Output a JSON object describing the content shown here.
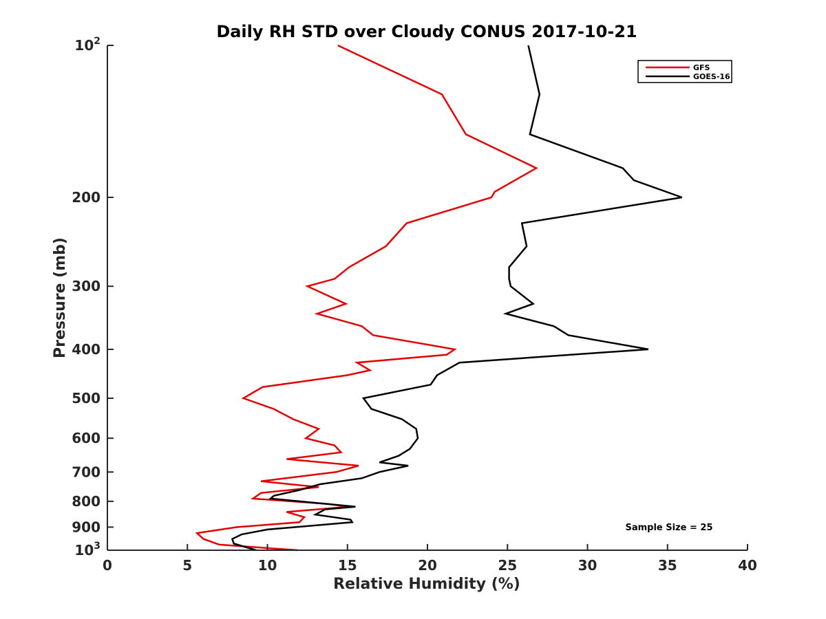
{
  "chart_data": {
    "type": "line",
    "title": "Daily RH STD over Cloudy CONUS 2017-10-21",
    "xlabel": "Relative Humidity (%)",
    "ylabel": "Pressure (mb)",
    "xlim": [
      0,
      40
    ],
    "ylim": [
      100,
      1000
    ],
    "yscale": "log",
    "y_reversed": true,
    "x_ticks": [
      "0",
      "5",
      "10",
      "15",
      "20",
      "25",
      "30",
      "35",
      "40"
    ],
    "y_ticks": [
      {
        "value": 100,
        "label": "10",
        "sup": "2"
      },
      {
        "value": 200,
        "label": "200"
      },
      {
        "value": 300,
        "label": "300"
      },
      {
        "value": 400,
        "label": "400"
      },
      {
        "value": 500,
        "label": "500"
      },
      {
        "value": 600,
        "label": "600"
      },
      {
        "value": 700,
        "label": "700"
      },
      {
        "value": 800,
        "label": "800"
      },
      {
        "value": 900,
        "label": "900"
      },
      {
        "value": 1000,
        "label": "10",
        "sup": "3"
      }
    ],
    "legend": {
      "position": "top-right"
    },
    "annotation": "Sample Size = 25",
    "series": [
      {
        "name": "GFS",
        "color": "#e00000",
        "points": [
          [
            14.4,
            100
          ],
          [
            20.9,
            125
          ],
          [
            22.4,
            150
          ],
          [
            26.8,
            175
          ],
          [
            24.2,
            195
          ],
          [
            24.0,
            200
          ],
          [
            18.7,
            225
          ],
          [
            17.4,
            250
          ],
          [
            15.1,
            275
          ],
          [
            14.2,
            290
          ],
          [
            12.5,
            300
          ],
          [
            14.9,
            325
          ],
          [
            13.1,
            340
          ],
          [
            15.9,
            360
          ],
          [
            16.6,
            375
          ],
          [
            21.7,
            400
          ],
          [
            21.2,
            410
          ],
          [
            15.6,
            425
          ],
          [
            16.4,
            440
          ],
          [
            15.0,
            450
          ],
          [
            9.7,
            475
          ],
          [
            8.5,
            500
          ],
          [
            10.4,
            525
          ],
          [
            11.6,
            550
          ],
          [
            13.2,
            575
          ],
          [
            12.4,
            600
          ],
          [
            14.2,
            620
          ],
          [
            14.6,
            640
          ],
          [
            11.2,
            660
          ],
          [
            15.7,
            680
          ],
          [
            14.3,
            700
          ],
          [
            9.6,
            730
          ],
          [
            13.2,
            750
          ],
          [
            9.6,
            770
          ],
          [
            9.1,
            790
          ],
          [
            13.8,
            810
          ],
          [
            15.1,
            820
          ],
          [
            11.2,
            840
          ],
          [
            12.3,
            860
          ],
          [
            12.0,
            880
          ],
          [
            8.1,
            900
          ],
          [
            5.6,
            925
          ],
          [
            6.0,
            950
          ],
          [
            7.0,
            975
          ],
          [
            11.9,
            1000
          ]
        ]
      },
      {
        "name": "GOES-16",
        "color": "#000000",
        "points": [
          [
            26.3,
            100
          ],
          [
            27.0,
            125
          ],
          [
            26.4,
            150
          ],
          [
            32.2,
            175
          ],
          [
            32.9,
            185
          ],
          [
            35.9,
            200
          ],
          [
            25.9,
            225
          ],
          [
            26.2,
            250
          ],
          [
            25.1,
            275
          ],
          [
            25.1,
            290
          ],
          [
            25.2,
            300
          ],
          [
            26.6,
            325
          ],
          [
            24.9,
            340
          ],
          [
            27.9,
            360
          ],
          [
            28.8,
            375
          ],
          [
            33.8,
            400
          ],
          [
            22.0,
            425
          ],
          [
            20.6,
            450
          ],
          [
            20.2,
            470
          ],
          [
            16.0,
            500
          ],
          [
            16.5,
            525
          ],
          [
            18.4,
            550
          ],
          [
            19.3,
            575
          ],
          [
            19.4,
            600
          ],
          [
            18.9,
            630
          ],
          [
            18.2,
            650
          ],
          [
            17.0,
            670
          ],
          [
            18.8,
            680
          ],
          [
            17.0,
            700
          ],
          [
            15.9,
            720
          ],
          [
            13.3,
            740
          ],
          [
            12.0,
            760
          ],
          [
            10.4,
            780
          ],
          [
            10.2,
            790
          ],
          [
            12.0,
            800
          ],
          [
            15.5,
            820
          ],
          [
            13.6,
            830
          ],
          [
            13.0,
            850
          ],
          [
            15.2,
            870
          ],
          [
            15.3,
            880
          ],
          [
            10.0,
            910
          ],
          [
            8.4,
            930
          ],
          [
            7.8,
            950
          ],
          [
            7.9,
            970
          ],
          [
            9.3,
            1000
          ]
        ]
      }
    ]
  }
}
